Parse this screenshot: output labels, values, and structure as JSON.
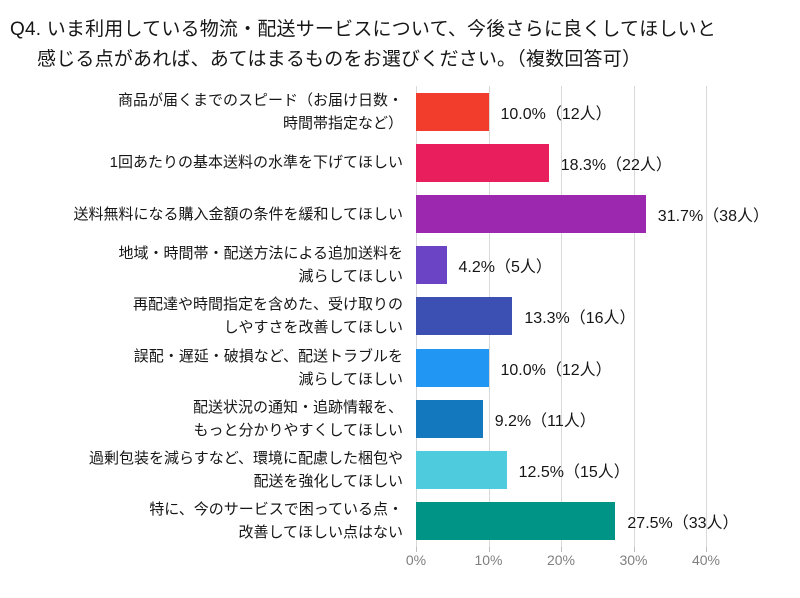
{
  "title": {
    "lines": [
      "Q4. いま利用している物流・配送サービスについて、今後さらに良くしてほしいと",
      "感じる点があれば、あてはまるものをお選びください。（複数回答可）"
    ]
  },
  "chart_data": {
    "type": "bar",
    "orientation": "horizontal",
    "title": "Q4. いま利用している物流・配送サービスについて、今後さらに良くしてほしいと感じる点があれば、あてはまるものをお選びください。（複数回答可）",
    "categories": [
      "商品が届くまでのスピード（お届け日数・\n時間帯指定など）",
      "1回あたりの基本送料の水準を下げてほしい",
      "送料無料になる購入金額の条件を緩和してほしい",
      "地域・時間帯・配送方法による追加送料を\n減らしてほしい",
      "再配達や時間指定を含めた、受け取りの\nしやすさを改善してほしい",
      "誤配・遅延・破損など、配送トラブルを\n減らしてほしい",
      "配送状況の通知・追跡情報を、\nもっと分かりやすくしてほしい",
      "過剰包装を減らすなど、環境に配慮した梱包や\n配送を強化してほしい",
      "特に、今のサービスで困っている点・\n改善してほしい点はない"
    ],
    "values": [
      10.0,
      18.3,
      31.7,
      4.2,
      13.3,
      10.0,
      9.2,
      12.5,
      27.5
    ],
    "counts": [
      12,
      22,
      38,
      5,
      16,
      12,
      11,
      15,
      33
    ],
    "value_labels": [
      "10.0%（12人）",
      "18.3%（22人）",
      "31.7%（38人）",
      "4.2%（5人）",
      "13.3%（16人）",
      "10.0%（12人）",
      "9.2%（11人）",
      "12.5%（15人）",
      "27.5%（33人）"
    ],
    "bar_colors": [
      "#f23d2c",
      "#e91e5c",
      "#9c28b0",
      "#6a44c4",
      "#3c50b4",
      "#2196f3",
      "#1478be",
      "#4ecbdd",
      "#009487"
    ],
    "xlabel": "",
    "ylabel": "",
    "xlim": [
      0,
      40
    ],
    "x_ticks": [
      "0%",
      "10%",
      "20%",
      "30%",
      "40%"
    ],
    "x_tick_values": [
      0,
      10,
      20,
      30,
      40
    ],
    "grid": true,
    "legend": false,
    "gridline_color": "#d9d9d9"
  }
}
